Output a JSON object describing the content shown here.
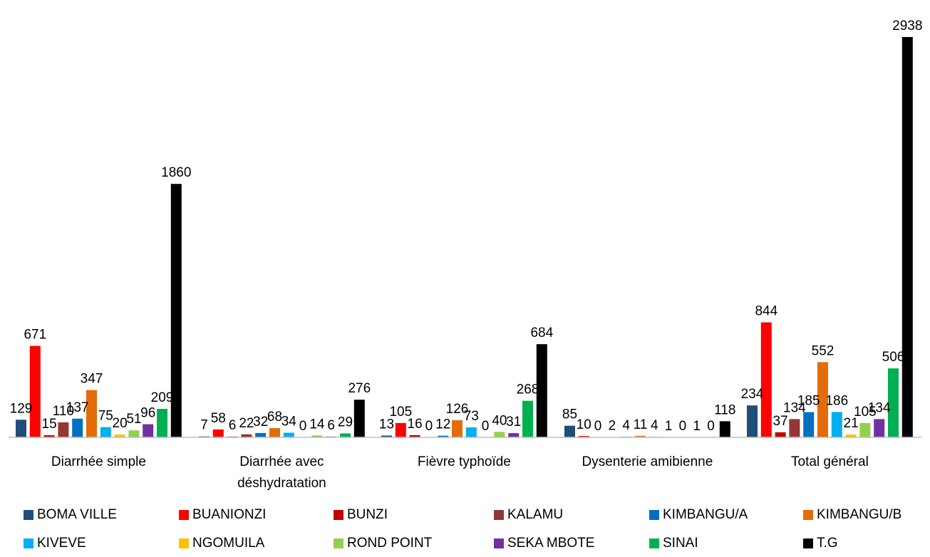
{
  "chart_data": {
    "type": "bar",
    "title": "",
    "xlabel": "",
    "ylabel": "",
    "ylim": [
      0,
      3000
    ],
    "grid": false,
    "legend_position": "bottom",
    "categories": [
      [
        "Diarrhée simple"
      ],
      [
        "Diarrhée avec",
        "déshydratation"
      ],
      [
        "Fièvre typhoïde"
      ],
      [
        "Dysenterie amibienne"
      ],
      [
        "Total général"
      ]
    ],
    "series": [
      {
        "name": "BOMA VILLE",
        "color": "#1F4E79",
        "values": [
          129,
          7,
          13,
          85,
          234
        ]
      },
      {
        "name": "BUANIONZI",
        "color": "#FF0000",
        "values": [
          671,
          58,
          105,
          10,
          844
        ]
      },
      {
        "name": "BUNZI",
        "color": "#C00000",
        "values": [
          15,
          6,
          16,
          0,
          37
        ]
      },
      {
        "name": "KALAMU",
        "color": "#943634",
        "values": [
          110,
          22,
          0,
          2,
          134
        ]
      },
      {
        "name": "KIMBANGU/A",
        "color": "#0070C0",
        "values": [
          137,
          32,
          12,
          4,
          185
        ]
      },
      {
        "name": "KIMBANGU/B",
        "color": "#E36C09",
        "values": [
          347,
          68,
          126,
          11,
          552
        ]
      },
      {
        "name": "KIVEVE",
        "color": "#00B0F0",
        "values": [
          75,
          34,
          73,
          4,
          186
        ]
      },
      {
        "name": "NGOMUILA",
        "color": "#FFC000",
        "values": [
          20,
          0,
          0,
          1,
          21
        ]
      },
      {
        "name": "ROND POINT",
        "color": "#92D050",
        "values": [
          51,
          14,
          40,
          0,
          105
        ]
      },
      {
        "name": "SEKA MBOTE",
        "color": "#7030A0",
        "values": [
          96,
          6,
          31,
          1,
          134
        ]
      },
      {
        "name": "SINAI",
        "color": "#00B050",
        "values": [
          209,
          29,
          268,
          0,
          506
        ]
      },
      {
        "name": "T.G",
        "color": "#000000",
        "values": [
          1860,
          276,
          684,
          118,
          2938
        ]
      }
    ]
  }
}
